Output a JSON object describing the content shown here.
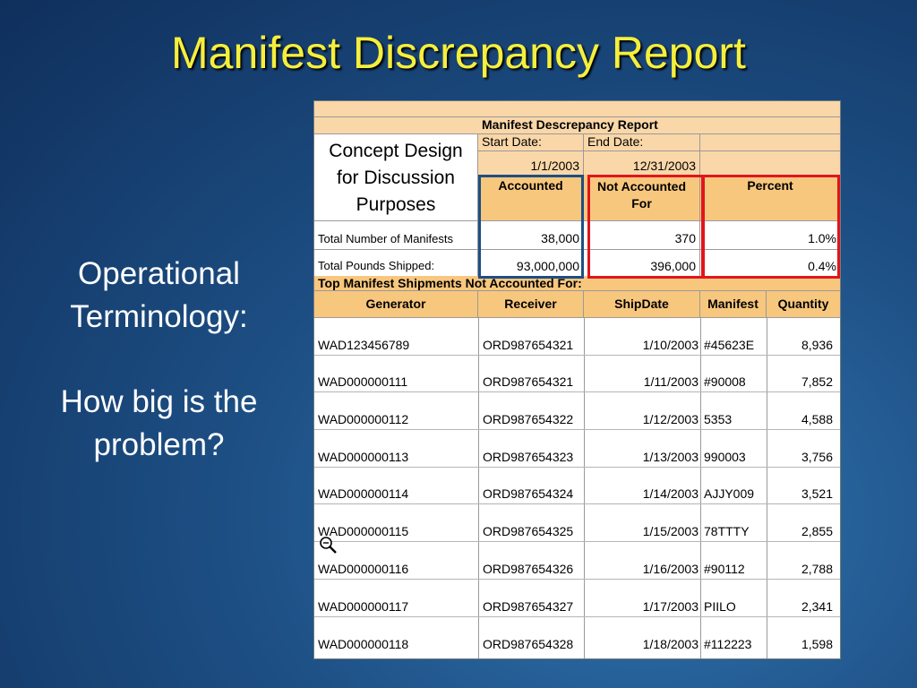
{
  "slide": {
    "title": "Manifest Discrepancy Report",
    "left_line_1": "Operational",
    "left_line_2": "Terminology:",
    "left_line_3": "How big is the",
    "left_line_4": "problem?"
  },
  "report": {
    "header_title": "Manifest Descrepancy Report",
    "concept_line_1": "Concept Design",
    "concept_line_2": "for Discussion",
    "concept_line_3": "Purposes",
    "start_date_label": "Start Date:",
    "end_date_label": "End Date:",
    "start_date": "1/1/2003",
    "end_date": "12/31/2003",
    "col_accounted": "Accounted",
    "col_not_accounted_1": "Not Accounted",
    "col_not_accounted_2": "For",
    "col_percent": "Percent",
    "summary": [
      {
        "label": "Total Number of Manifests",
        "accounted": "38,000",
        "not_accounted": "370",
        "percent": "1.0%"
      },
      {
        "label": "Total Pounds Shipped:",
        "accounted": "93,000,000",
        "not_accounted": "396,000",
        "percent": "0.4%"
      }
    ],
    "top_shipments_label": "Top Manifest Shipments Not Accounted For:",
    "columns": [
      "Generator",
      "Receiver",
      "ShipDate",
      "Manifest",
      "Quantity"
    ],
    "rows": [
      [
        "WAD123456789",
        "ORD987654321",
        "1/10/2003",
        "#45623E",
        "8,936"
      ],
      [
        "WAD000000111",
        "ORD987654321",
        "1/11/2003",
        "#90008",
        "7,852"
      ],
      [
        "WAD000000112",
        "ORD987654322",
        "1/12/2003",
        "5353",
        "4,588"
      ],
      [
        "WAD000000113",
        "ORD987654323",
        "1/13/2003",
        "990003",
        "3,756"
      ],
      [
        "WAD000000114",
        "ORD987654324",
        "1/14/2003",
        "AJJY009",
        "3,521"
      ],
      [
        "WAD000000115",
        "ORD987654325",
        "1/15/2003",
        "78TTTY",
        "2,855"
      ],
      [
        "WAD000000116",
        "ORD987654326",
        "1/16/2003",
        "#90112",
        "2,788"
      ],
      [
        "WAD000000117",
        "ORD987654327",
        "1/17/2003",
        "PIILO",
        "2,341"
      ],
      [
        "WAD000000118",
        "ORD987654328",
        "1/18/2003",
        "#112223",
        "1,598"
      ]
    ]
  },
  "colors": {
    "title": "#f5ef3c",
    "header_fill": "#f8c77e",
    "cell_fill": "#fad7a8",
    "blue_outline": "#1d4f84",
    "red_outline": "#e0161c"
  },
  "icons": {
    "zoom": "magnifier-icon"
  }
}
